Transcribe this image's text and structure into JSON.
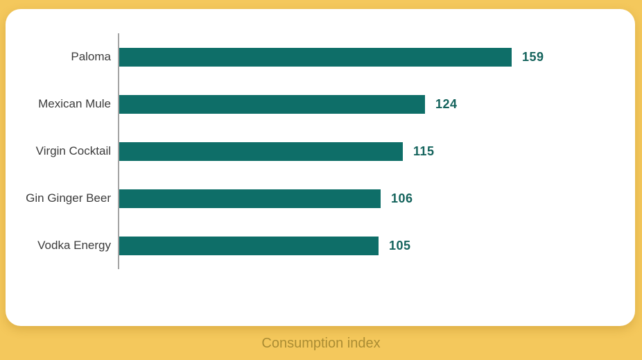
{
  "page": {
    "background_color": "#f4c85c",
    "card_color": "#ffffff"
  },
  "chart_data": {
    "type": "bar",
    "orientation": "horizontal",
    "title": "",
    "xlabel": "Consumption index",
    "ylabel": "",
    "categories": [
      "Paloma",
      "Mexican Mule",
      "Virgin Cocktail",
      "Gin Ginger Beer",
      "Vodka Energy"
    ],
    "values": [
      159,
      124,
      115,
      106,
      105
    ],
    "xlim": [
      0,
      170
    ],
    "gridlines": false,
    "data_labels_visible": true,
    "legend": null,
    "bar_color": "#0e6e68",
    "value_label_color": "#14635c",
    "category_label_color": "#3b3b3b",
    "axis_line_color": "#a3a3a3"
  },
  "footer": {
    "label": "Consumption index"
  }
}
